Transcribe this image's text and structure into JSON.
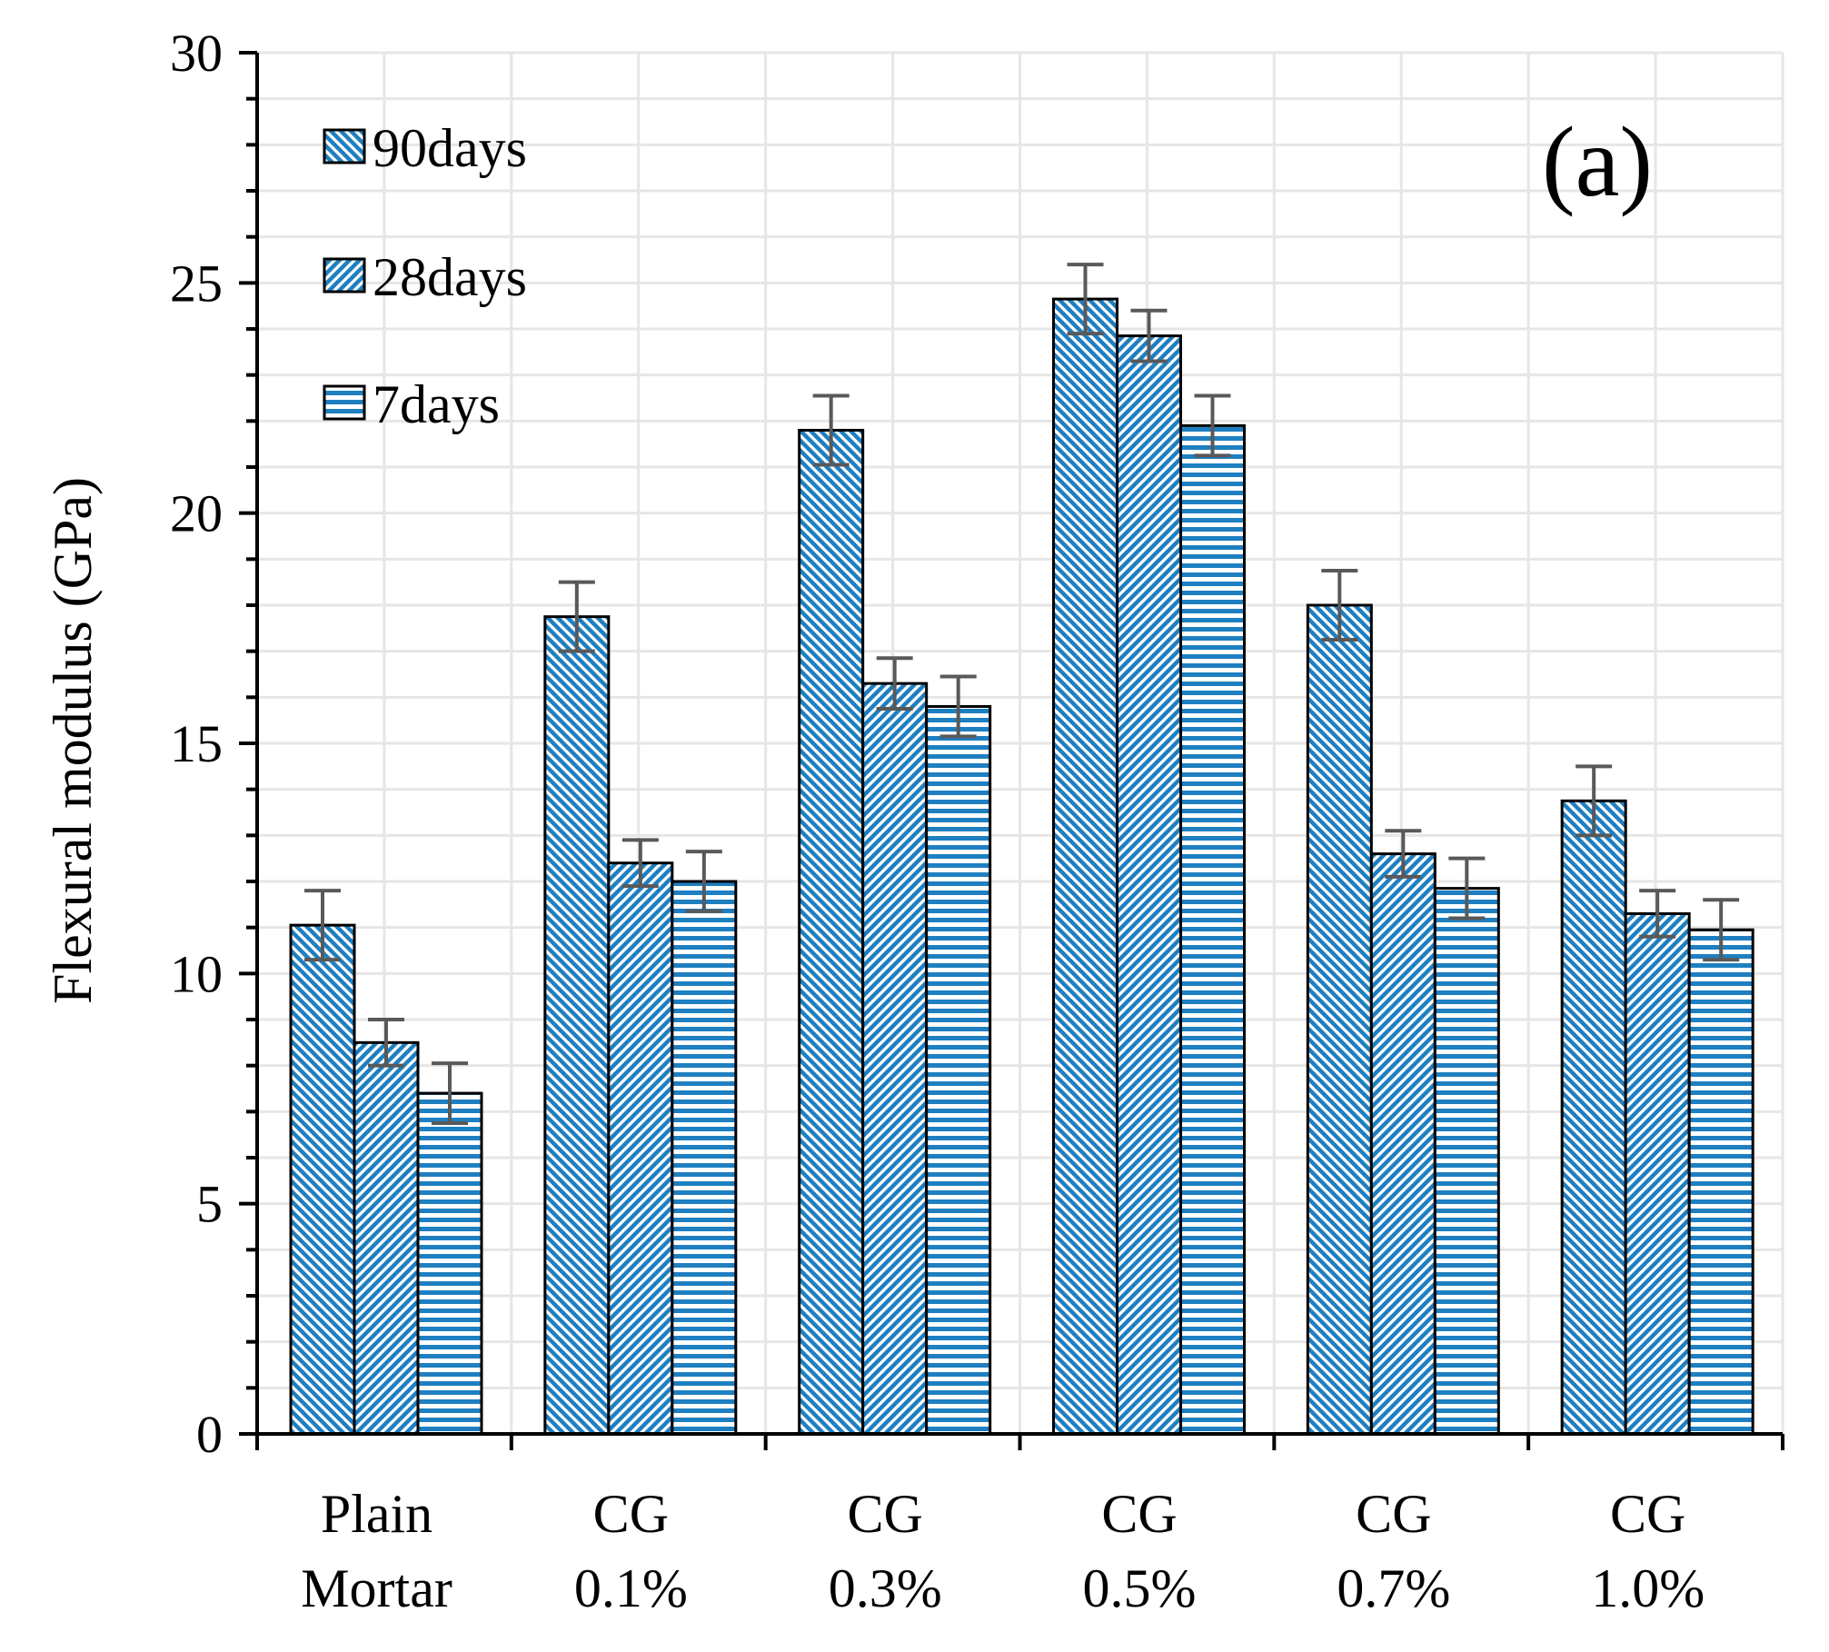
{
  "chart_data": {
    "type": "bar",
    "title": "",
    "panel_label": "(a)",
    "xlabel": "",
    "ylabel": "Flexural modulus (GPa)",
    "ylim": [
      0,
      30
    ],
    "yticks": [
      0,
      5,
      10,
      15,
      20,
      25,
      30
    ],
    "grid": true,
    "legend_position": "top-left",
    "categories": [
      [
        "Plain",
        "Mortar"
      ],
      [
        "CG",
        "0.1%"
      ],
      [
        "CG",
        "0.3%"
      ],
      [
        "CG",
        "0.5%"
      ],
      [
        "CG",
        "0.7%"
      ],
      [
        "CG",
        "1.0%"
      ]
    ],
    "series": [
      {
        "name": "90days",
        "values": [
          11.05,
          17.75,
          21.8,
          24.65,
          18.0,
          13.75
        ],
        "errors": [
          0.75,
          0.75,
          0.75,
          0.75,
          0.75,
          0.75
        ],
        "pattern": "diag-down",
        "color": "#1e7fc1"
      },
      {
        "name": "28days",
        "values": [
          8.5,
          12.4,
          16.3,
          23.85,
          12.6,
          11.3
        ],
        "errors": [
          0.5,
          0.5,
          0.55,
          0.55,
          0.5,
          0.5
        ],
        "pattern": "diag-up",
        "color": "#1e7fc1"
      },
      {
        "name": "7days",
        "values": [
          7.4,
          12.0,
          15.8,
          21.9,
          11.85,
          10.95
        ],
        "errors": [
          0.65,
          0.65,
          0.65,
          0.65,
          0.65,
          0.65
        ],
        "pattern": "horizontal",
        "color": "#1e7fc1"
      }
    ],
    "error_bar_color": "#595959"
  }
}
